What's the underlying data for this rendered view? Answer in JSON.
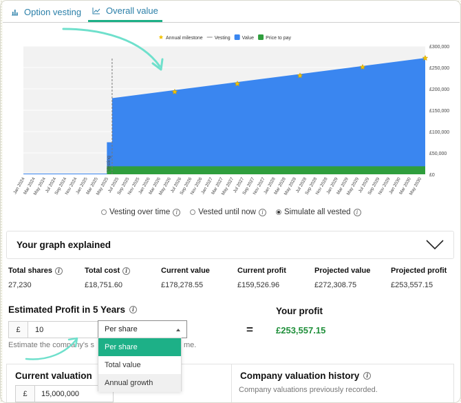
{
  "tabs": [
    {
      "label": "Option vesting",
      "icon": "bar-chart-icon",
      "active": false
    },
    {
      "label": "Overall value",
      "icon": "line-chart-icon",
      "active": true
    }
  ],
  "chart_data": {
    "type": "area",
    "legend": [
      {
        "label": "Annual milestone",
        "marker": "star",
        "color": "#f2c200"
      },
      {
        "label": "Vesting",
        "marker": "dash",
        "color": "#888888"
      },
      {
        "label": "Value",
        "marker": "square",
        "color": "#3a86f0"
      },
      {
        "label": "Price to pay",
        "marker": "square",
        "color": "#2f9e3d"
      }
    ],
    "legend_position": "top",
    "x_ticks": [
      "Jan 2024",
      "Mar 2024",
      "May 2024",
      "Jul 2024",
      "Sep 2024",
      "Nov 2024",
      "Jan 2025",
      "Mar 2025",
      "May 2025",
      "Jul 2025",
      "Sep 2025",
      "Nov 2025",
      "Jan 2026",
      "Mar 2026",
      "May 2026",
      "Jul 2026",
      "Sep 2026",
      "Nov 2026",
      "Jan 2027",
      "Mar 2027",
      "May 2027",
      "Jul 2027",
      "Sep 2027",
      "Nov 2027",
      "Jan 2028",
      "Mar 2028",
      "May 2028",
      "Jul 2028",
      "Sep 2028",
      "Nov 2028",
      "Jan 2029",
      "Mar 2029",
      "May 2029",
      "Jul 2029",
      "Sep 2029",
      "Nov 2029",
      "Jan 2030",
      "Mar 2030",
      "May 2030"
    ],
    "y_ticks": [
      "£0",
      "£50,000",
      "£100,000",
      "£150,000",
      "£200,000",
      "£250,000",
      "£300,000"
    ],
    "y_axis_side": "right",
    "ylim": [
      0,
      300000
    ],
    "vesting_marker_label": "Vesting",
    "vesting_date": "Jun 2025",
    "value_series": {
      "name": "Value",
      "x": [
        "Jan 2024",
        "May 2025",
        "May 2025",
        "Jun 2025",
        "Jun 2025",
        "Jun 2030"
      ],
      "y": [
        0,
        0,
        75000,
        75000,
        178279,
        272309
      ]
    },
    "price_series": {
      "name": "Price to pay",
      "x": [
        "Jan 2024",
        "May 2025",
        "May 2025",
        "Jun 2030"
      ],
      "y": [
        0,
        0,
        18752,
        18752
      ]
    },
    "milestones": [
      {
        "x": "Jun 2026",
        "y": 193000
      },
      {
        "x": "Jun 2027",
        "y": 212000
      },
      {
        "x": "Jun 2028",
        "y": 231000
      },
      {
        "x": "Jun 2029",
        "y": 251000
      },
      {
        "x": "Jun 2030",
        "y": 272000
      }
    ]
  },
  "view_options": [
    {
      "label": "Vesting over time",
      "selected": false
    },
    {
      "label": "Vested until now",
      "selected": false
    },
    {
      "label": "Simulate all vested",
      "selected": true
    }
  ],
  "explained": {
    "title": "Your graph explained",
    "icon": "chevron-down-icon"
  },
  "stats": [
    {
      "label": "Total shares",
      "value": "27,230",
      "info": true
    },
    {
      "label": "Total cost",
      "value": "£18,751.60",
      "info": true
    },
    {
      "label": "Current value",
      "value": "£178,278.55",
      "info": false
    },
    {
      "label": "Current profit",
      "value": "£159,526.96",
      "info": false
    },
    {
      "label": "Projected value",
      "value": "£272,308.75",
      "info": false
    },
    {
      "label": "Projected profit",
      "value": "£253,557.15",
      "info": false
    }
  ],
  "estimate": {
    "title": "Estimated Profit in 5 Years",
    "currency": "£",
    "amount": "10",
    "mode": "Per share",
    "options": [
      "Per share",
      "Total value",
      "Annual growth"
    ],
    "equals": "=",
    "hint_start": "Estimate the company's s",
    "hint_end": "me.",
    "your_profit_label": "Your profit",
    "your_profit_value": "£253,557.15"
  },
  "valuation": {
    "title": "Current valuation",
    "currency": "£",
    "value": "15,000,000"
  },
  "history": {
    "title": "Company valuation history",
    "subtitle": "Company valuations previously recorded."
  },
  "colors": {
    "accent": "#1db087",
    "value": "#3a86f0",
    "price": "#2f9e3d",
    "profit": "#1f8f3a",
    "link": "#2a7fa8"
  }
}
